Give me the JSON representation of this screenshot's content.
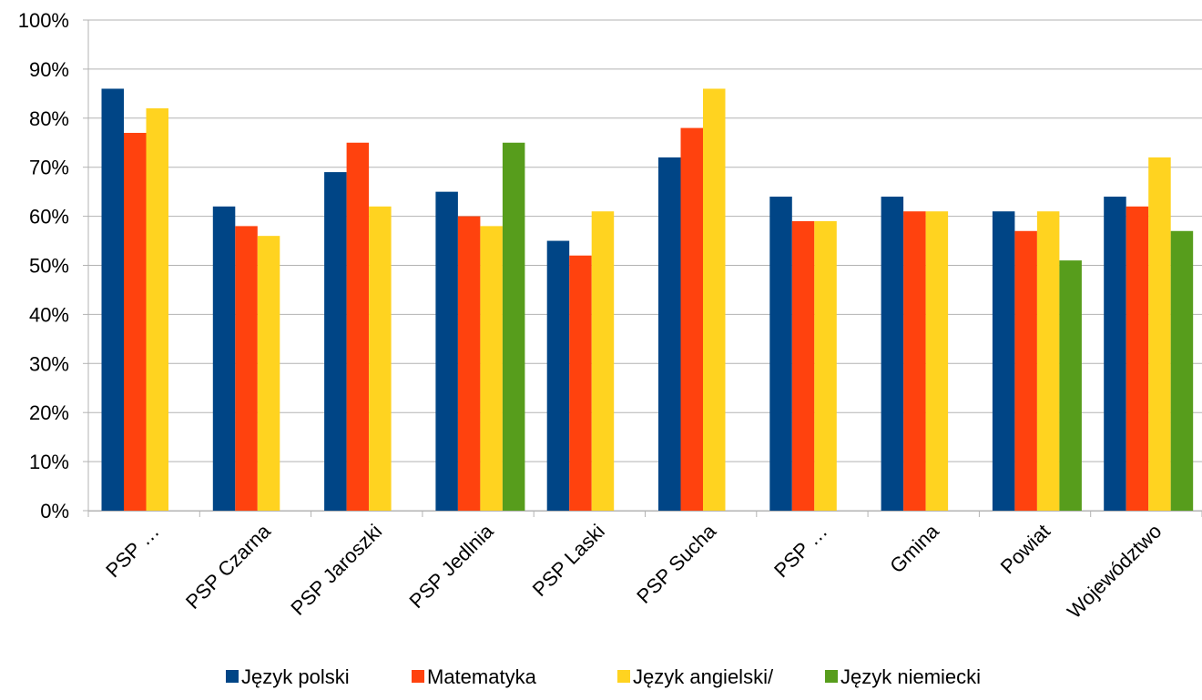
{
  "chart_data": {
    "type": "bar",
    "title": "",
    "xlabel": "",
    "ylabel": "",
    "ylim": [
      0,
      100
    ],
    "y_ticks": [
      "0%",
      "10%",
      "20%",
      "30%",
      "40%",
      "50%",
      "60%",
      "70%",
      "80%",
      "90%",
      "100%"
    ],
    "grid": true,
    "legend_position": "bottom",
    "categories": [
      "PSP …",
      "PSP Czarna",
      "PSP Jaroszki",
      "PSP Jedlnia",
      "PSP Laski",
      "PSP Sucha",
      "PSP …",
      "Gmina",
      "Powiat",
      "Województwo"
    ],
    "series": [
      {
        "name": "Język polski",
        "color": "#004586",
        "values": [
          86,
          62,
          69,
          65,
          55,
          72,
          64,
          64,
          61,
          64
        ]
      },
      {
        "name": "Matematyka",
        "color": "#ff420e",
        "values": [
          77,
          58,
          75,
          60,
          52,
          78,
          59,
          61,
          57,
          62
        ]
      },
      {
        "name": "Język angielski/",
        "color": "#ffd320",
        "values": [
          82,
          56,
          62,
          58,
          61,
          86,
          59,
          61,
          61,
          72
        ]
      },
      {
        "name": "Język niemiecki",
        "color": "#579d1c",
        "values": [
          null,
          null,
          null,
          75,
          null,
          null,
          null,
          null,
          51,
          57
        ]
      }
    ]
  }
}
